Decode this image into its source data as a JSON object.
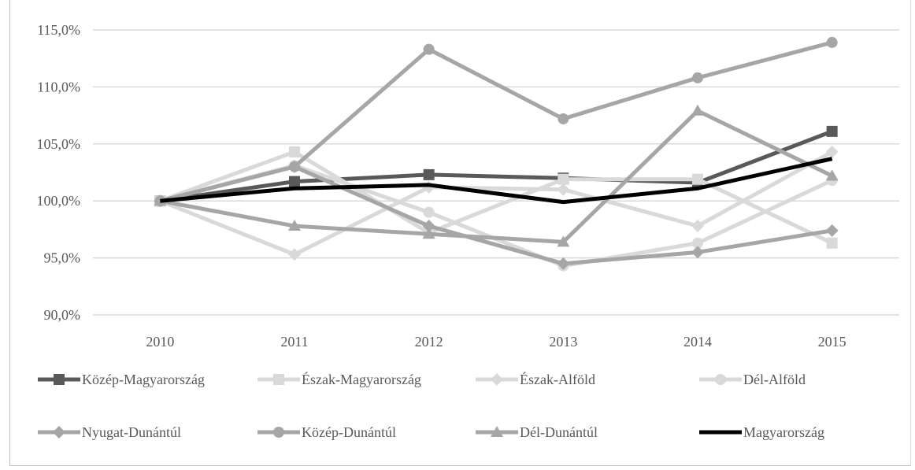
{
  "chart_data": {
    "type": "line",
    "title": "",
    "xlabel": "",
    "ylabel": "",
    "ylim": [
      90,
      115
    ],
    "y_ticks": [
      "90,0%",
      "95,0%",
      "100,0%",
      "105,0%",
      "110,0%",
      "115,0%"
    ],
    "y_tick_values": [
      90,
      95,
      100,
      105,
      110,
      115
    ],
    "categories": [
      "2010",
      "2011",
      "2012",
      "2013",
      "2014",
      "2015"
    ],
    "grid": "horizontal",
    "legend_position": "bottom",
    "series": [
      {
        "name": "Közép-Magyarország",
        "values": [
          100.0,
          101.7,
          102.3,
          102.0,
          101.6,
          106.1
        ],
        "color": "#595959",
        "marker": "square",
        "width": 5
      },
      {
        "name": "Észak-Magyarország",
        "values": [
          100.0,
          104.3,
          97.2,
          101.9,
          101.9,
          96.3
        ],
        "color": "#d9d9d9",
        "marker": "square",
        "width": 5
      },
      {
        "name": "Észak-Alföld",
        "values": [
          100.0,
          95.3,
          101.2,
          101.0,
          97.8,
          104.3
        ],
        "color": "#d9d9d9",
        "marker": "diamond",
        "width": 5
      },
      {
        "name": "Dél-Alföld",
        "values": [
          100.0,
          103.1,
          99.0,
          94.3,
          96.3,
          101.8
        ],
        "color": "#d9d9d9",
        "marker": "circle",
        "width": 5
      },
      {
        "name": "Nyugat-Dunántúl",
        "values": [
          100.0,
          103.0,
          97.8,
          94.5,
          95.5,
          97.4
        ],
        "color": "#a6a6a6",
        "marker": "diamond",
        "width": 5
      },
      {
        "name": "Közép-Dunántúl",
        "values": [
          100.0,
          103.0,
          113.3,
          107.2,
          110.8,
          113.9
        ],
        "color": "#a6a6a6",
        "marker": "circle",
        "width": 5
      },
      {
        "name": "Dél-Dunántúl",
        "values": [
          100.0,
          97.8,
          97.1,
          96.4,
          107.9,
          102.2
        ],
        "color": "#a6a6a6",
        "marker": "triangle",
        "width": 5
      },
      {
        "name": "Magyarország",
        "values": [
          100.0,
          101.1,
          101.4,
          99.9,
          101.1,
          103.7
        ],
        "color": "#000000",
        "marker": "none",
        "width": 5
      }
    ]
  }
}
